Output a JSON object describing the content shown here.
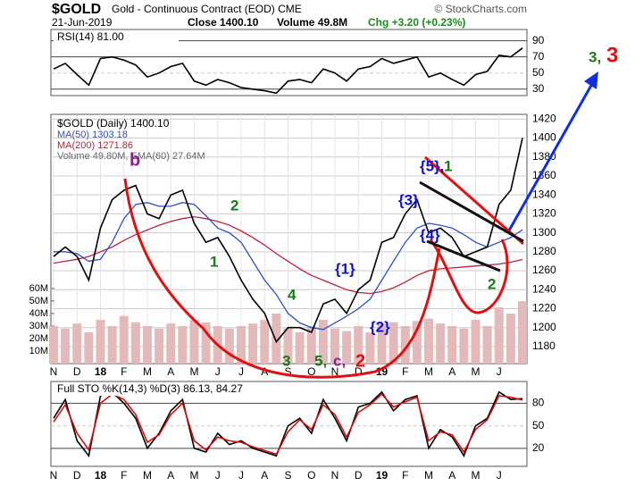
{
  "header": {
    "symbol": "$GOLD",
    "name": "Gold - Continuous Contract (EOD) CME",
    "date": "21-Jun-2019",
    "close": "Close 1400.10",
    "volume": "Volume 49.8M",
    "change": "Chg +3.20 (+0.23%)",
    "copyright": "© StockCharts.com"
  },
  "annotations": [
    {
      "text": "b",
      "color": "#8a2090"
    },
    {
      "text": "1",
      "color": "#1a7a1a"
    },
    {
      "text": "2",
      "color": "#1a7a1a"
    },
    {
      "text": "3",
      "color": "#1a7a1a"
    },
    {
      "text": "4",
      "color": "#1a7a1a"
    },
    {
      "text": "5,",
      "color": "#1a7a1a"
    },
    {
      "text": "c,",
      "color": "#8a2090"
    },
    {
      "text": "2",
      "color": "#e01010"
    },
    {
      "text": "{1}",
      "color": "#1010d0"
    },
    {
      "text": "{2}",
      "color": "#1010d0"
    },
    {
      "text": "{3}",
      "color": "#1010d0"
    },
    {
      "text": "{4}",
      "color": "#1010d0"
    },
    {
      "text": "{5},",
      "color": "#1010d0"
    },
    {
      "text": "1",
      "color": "#1a7a1a"
    },
    {
      "text": "2",
      "color": "#1a7a1a"
    },
    {
      "text": "3,",
      "color": "#1a7a1a"
    },
    {
      "text": "3",
      "color": "#e01010"
    }
  ],
  "chart_data": [
    {
      "type": "line",
      "ylim": [
        22,
        104
      ],
      "yticks": [
        90,
        70,
        50,
        30
      ],
      "series": [
        {
          "name": "RSI(14) 81.00",
          "color": "#000000",
          "values": [
            55,
            62,
            48,
            35,
            68,
            70,
            66,
            60,
            45,
            50,
            58,
            62,
            40,
            35,
            42,
            38,
            32,
            30,
            28,
            25,
            40,
            42,
            38,
            55,
            50,
            40,
            55,
            58,
            68,
            62,
            66,
            70,
            45,
            50,
            42,
            35,
            48,
            52,
            72,
            70,
            81
          ]
        }
      ]
    },
    {
      "type": "line",
      "grid": true,
      "categories": [
        "N",
        null,
        "D",
        null,
        "18",
        null,
        "F",
        null,
        "M",
        null,
        "A",
        null,
        "M",
        null,
        "J",
        null,
        "J",
        null,
        "A",
        null,
        "S",
        null,
        "O",
        null,
        "N",
        null,
        "D",
        null,
        "19",
        null,
        "F",
        null,
        "M",
        null,
        "A",
        null,
        "M",
        null,
        "J",
        null,
        null
      ],
      "ylim": [
        1162,
        1425
      ],
      "yticks": [
        1180,
        1200,
        1220,
        1240,
        1260,
        1280,
        1300,
        1320,
        1340,
        1360,
        1380,
        1400,
        1420
      ],
      "y2lim": [
        0,
        199
      ],
      "y2ticks": [
        {
          "value": 10,
          "label": "10M"
        },
        {
          "value": 20,
          "label": "20M"
        },
        {
          "value": 30,
          "label": "30M"
        },
        {
          "value": 40,
          "label": "40M"
        },
        {
          "value": 50,
          "label": "50M"
        },
        {
          "value": 60,
          "label": "60M"
        }
      ],
      "series": [
        {
          "name": "Volume 49.80M, EMA(60) 27.64M",
          "type": "bar",
          "axis": "y2",
          "color": "#e3b9b9",
          "values": [
            30,
            28,
            32,
            25,
            35,
            30,
            38,
            33,
            30,
            28,
            32,
            30,
            35,
            33,
            30,
            28,
            30,
            32,
            35,
            40,
            28,
            25,
            30,
            35,
            28,
            26,
            30,
            25,
            32,
            33,
            30,
            34,
            36,
            32,
            30,
            28,
            35,
            30,
            45,
            40,
            49.8
          ]
        },
        {
          "name": "MA(200) 1271.86",
          "color": "#c0203a",
          "values": [
            1268,
            1270,
            1272,
            1275,
            1280,
            1285,
            1292,
            1298,
            1303,
            1308,
            1312,
            1315,
            1317,
            1315,
            1312,
            1308,
            1302,
            1295,
            1287,
            1278,
            1270,
            1262,
            1255,
            1250,
            1245,
            1240,
            1237,
            1236,
            1238,
            1242,
            1248,
            1255,
            1260,
            1262,
            1263,
            1264,
            1265,
            1266,
            1267,
            1269,
            1271.86
          ]
        },
        {
          "name": "MA(50) 1303.18",
          "color": "#3050c0",
          "values": [
            1280,
            1280,
            1278,
            1270,
            1272,
            1290,
            1315,
            1330,
            1332,
            1328,
            1328,
            1332,
            1330,
            1318,
            1305,
            1300,
            1290,
            1270,
            1250,
            1235,
            1215,
            1205,
            1200,
            1198,
            1205,
            1212,
            1220,
            1230,
            1250,
            1270,
            1290,
            1305,
            1310,
            1308,
            1305,
            1298,
            1290,
            1285,
            1290,
            1295,
            1303.18
          ]
        },
        {
          "name": "$GOLD (Daily) 1400.10",
          "color": "#000000",
          "values": [
            1275,
            1285,
            1275,
            1250,
            1305,
            1335,
            1345,
            1350,
            1320,
            1315,
            1340,
            1345,
            1310,
            1290,
            1295,
            1275,
            1250,
            1230,
            1215,
            1185,
            1200,
            1200,
            1195,
            1225,
            1230,
            1215,
            1240,
            1250,
            1290,
            1295,
            1320,
            1335,
            1300,
            1305,
            1295,
            1275,
            1280,
            1285,
            1330,
            1345,
            1400.1
          ]
        }
      ]
    },
    {
      "type": "line",
      "title": "Full STO %K(14,3) %D(3) 86.13, 84.27",
      "categories": [
        "N",
        null,
        "D",
        null,
        "18",
        null,
        "F",
        null,
        "M",
        null,
        "A",
        null,
        "M",
        null,
        "J",
        null,
        "J",
        null,
        "A",
        null,
        "S",
        null,
        "O",
        null,
        "N",
        null,
        "D",
        null,
        "19",
        null,
        "F",
        null,
        "M",
        null,
        "A",
        null,
        "M",
        null,
        "J",
        null,
        null
      ],
      "ylim": [
        -4,
        109
      ],
      "yticks": [
        80,
        50,
        20
      ],
      "series": [
        {
          "color": "#000000",
          "values": [
            60,
            85,
            30,
            10,
            90,
            95,
            80,
            60,
            20,
            40,
            70,
            85,
            20,
            15,
            40,
            25,
            30,
            20,
            15,
            10,
            50,
            60,
            40,
            85,
            60,
            30,
            75,
            80,
            95,
            70,
            85,
            90,
            20,
            45,
            35,
            10,
            50,
            60,
            95,
            85,
            86.13
          ]
        },
        {
          "color": "#d01010",
          "values": [
            55,
            78,
            40,
            18,
            80,
            92,
            85,
            65,
            28,
            38,
            65,
            80,
            30,
            18,
            35,
            30,
            28,
            22,
            17,
            12,
            42,
            58,
            45,
            78,
            65,
            35,
            68,
            78,
            92,
            75,
            82,
            88,
            30,
            42,
            38,
            15,
            45,
            58,
            90,
            88,
            84.27
          ]
        }
      ]
    }
  ]
}
